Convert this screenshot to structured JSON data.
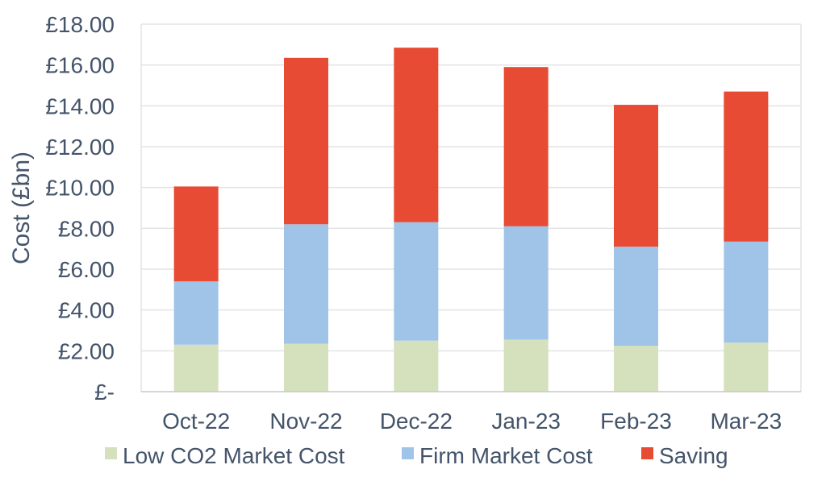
{
  "chart_data": {
    "type": "bar",
    "stacked": true,
    "categories": [
      "Oct-22",
      "Nov-22",
      "Dec-22",
      "Jan-23",
      "Feb-23",
      "Mar-23"
    ],
    "series": [
      {
        "name": "Low CO2 Market Cost",
        "color": "#d5e0bc",
        "values": [
          2.3,
          2.35,
          2.5,
          2.55,
          2.25,
          2.4
        ]
      },
      {
        "name": "Firm Market Cost",
        "color": "#a0c4e8",
        "values": [
          3.1,
          5.85,
          5.8,
          5.55,
          4.85,
          4.95
        ]
      },
      {
        "name": "Saving",
        "color": "#e84b33",
        "values": [
          4.65,
          8.15,
          8.55,
          7.8,
          6.95,
          7.35
        ]
      }
    ],
    "ylabel": "Cost (£bn)",
    "ylim": [
      0,
      18
    ],
    "yticks": [
      {
        "value": 0,
        "label": "£-"
      },
      {
        "value": 2,
        "label": "£2.00"
      },
      {
        "value": 4,
        "label": "£4.00"
      },
      {
        "value": 6,
        "label": "£6.00"
      },
      {
        "value": 8,
        "label": "£8.00"
      },
      {
        "value": 10,
        "label": "£10.00"
      },
      {
        "value": 12,
        "label": "£12.00"
      },
      {
        "value": 14,
        "label": "£14.00"
      },
      {
        "value": 16,
        "label": "£16.00"
      },
      {
        "value": 18,
        "label": "£18.00"
      }
    ],
    "grid": true,
    "legend_position": "bottom"
  }
}
